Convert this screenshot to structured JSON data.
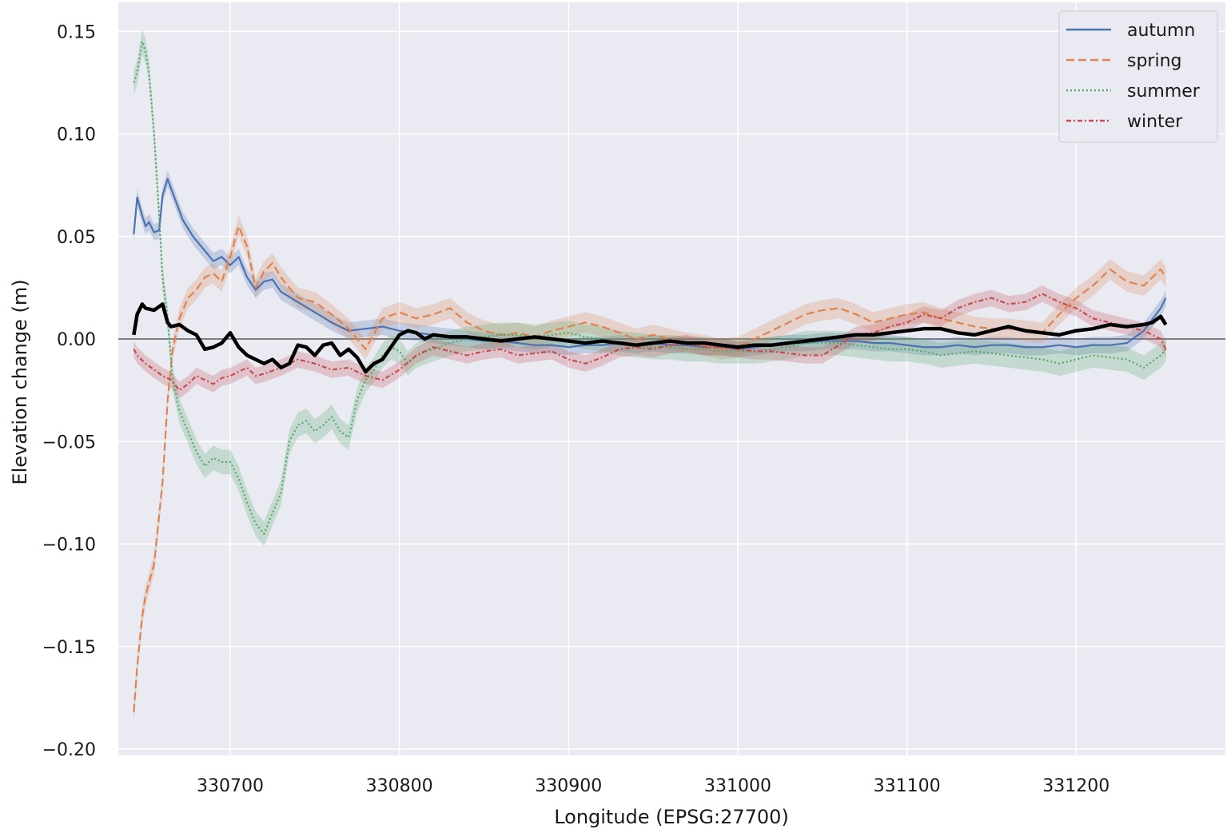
{
  "chart_data": {
    "type": "line",
    "title": "",
    "xlabel": "Longitude (EPSG:27700)",
    "ylabel": "Elevation change (m)",
    "xlim": [
      330635,
      331255
    ],
    "ylim": [
      -0.205,
      0.16
    ],
    "x_ticks": [
      330700,
      330800,
      330900,
      331000,
      331100,
      331200
    ],
    "y_ticks": [
      0.15,
      0.1,
      0.05,
      0.0,
      -0.05,
      -0.1,
      -0.15,
      -0.2
    ],
    "x_tick_labels": [
      "330700",
      "330800",
      "330900",
      "331000",
      "331100",
      "331200"
    ],
    "y_tick_labels": [
      "0.15",
      "0.10",
      "0.05",
      "0.00",
      "−0.05",
      "−0.10",
      "−0.15",
      "−0.20"
    ],
    "grid": true,
    "zero_line": 0.0,
    "legend_position": "top-right",
    "series": [
      {
        "name": "autumn",
        "color": "#4c72b0",
        "style": "solid",
        "band": 0.004,
        "x": [
          330643,
          330645,
          330648,
          330650,
          330652,
          330655,
          330658,
          330660,
          330663,
          330667,
          330672,
          330678,
          330685,
          330690,
          330695,
          330700,
          330705,
          330710,
          330715,
          330720,
          330725,
          330730,
          330740,
          330750,
          330760,
          330770,
          330780,
          330790,
          330800,
          330810,
          330820,
          330830,
          330840,
          330850,
          330860,
          330870,
          330880,
          330890,
          330900,
          330910,
          330920,
          330930,
          330940,
          330950,
          330960,
          330970,
          330980,
          330990,
          331000,
          331010,
          331020,
          331030,
          331040,
          331050,
          331060,
          331070,
          331080,
          331090,
          331100,
          331110,
          331120,
          331130,
          331140,
          331150,
          331160,
          331170,
          331180,
          331190,
          331200,
          331210,
          331220,
          331230,
          331240,
          331250,
          331253
        ],
        "y": [
          0.051,
          0.069,
          0.06,
          0.055,
          0.057,
          0.052,
          0.053,
          0.07,
          0.078,
          0.069,
          0.058,
          0.05,
          0.043,
          0.038,
          0.04,
          0.036,
          0.04,
          0.03,
          0.024,
          0.028,
          0.029,
          0.023,
          0.018,
          0.013,
          0.008,
          0.004,
          0.005,
          0.006,
          0.004,
          0.003,
          0.002,
          0.001,
          0.0,
          -0.001,
          -0.001,
          -0.002,
          -0.003,
          -0.003,
          -0.004,
          -0.003,
          -0.003,
          -0.002,
          -0.003,
          -0.002,
          -0.003,
          -0.003,
          -0.004,
          -0.004,
          -0.005,
          -0.004,
          -0.003,
          -0.002,
          -0.002,
          -0.001,
          -0.001,
          -0.001,
          -0.002,
          -0.002,
          -0.003,
          -0.004,
          -0.004,
          -0.003,
          -0.004,
          -0.003,
          -0.003,
          -0.004,
          -0.004,
          -0.003,
          -0.004,
          -0.003,
          -0.003,
          -0.002,
          0.004,
          0.015,
          0.02
        ]
      },
      {
        "name": "spring",
        "color": "#dd8452",
        "style": "dashed",
        "band": 0.005,
        "x": [
          330643,
          330645,
          330648,
          330650,
          330655,
          330660,
          330663,
          330666,
          330670,
          330675,
          330680,
          330685,
          330690,
          330695,
          330700,
          330705,
          330710,
          330715,
          330720,
          330725,
          330730,
          330740,
          330750,
          330760,
          330770,
          330780,
          330790,
          330800,
          330810,
          330820,
          330830,
          330840,
          330850,
          330860,
          330870,
          330880,
          330890,
          330900,
          330910,
          330920,
          330930,
          330940,
          330950,
          330960,
          330970,
          330980,
          330990,
          331000,
          331010,
          331020,
          331030,
          331040,
          331050,
          331060,
          331070,
          331080,
          331090,
          331100,
          331110,
          331120,
          331130,
          331140,
          331150,
          331160,
          331170,
          331180,
          331190,
          331200,
          331210,
          331220,
          331230,
          331240,
          331250,
          331253
        ],
        "y": [
          -0.182,
          -0.16,
          -0.135,
          -0.125,
          -0.11,
          -0.07,
          -0.03,
          -0.005,
          0.01,
          0.02,
          0.024,
          0.03,
          0.032,
          0.028,
          0.04,
          0.055,
          0.045,
          0.025,
          0.033,
          0.037,
          0.03,
          0.02,
          0.018,
          0.012,
          0.005,
          -0.005,
          0.01,
          0.013,
          0.01,
          0.012,
          0.015,
          0.008,
          0.004,
          0.002,
          0.003,
          0.001,
          0.004,
          0.006,
          0.008,
          0.006,
          0.003,
          0.0,
          0.002,
          0.0,
          -0.002,
          -0.003,
          -0.005,
          -0.004,
          0.0,
          0.004,
          0.008,
          0.012,
          0.014,
          0.015,
          0.012,
          0.008,
          0.01,
          0.012,
          0.013,
          0.01,
          0.008,
          0.006,
          0.005,
          0.005,
          0.004,
          0.003,
          0.012,
          0.02,
          0.026,
          0.034,
          0.028,
          0.026,
          0.034,
          0.03
        ]
      },
      {
        "name": "summer",
        "color": "#55a868",
        "style": "dotted",
        "band": 0.006,
        "x": [
          330643,
          330645,
          330648,
          330650,
          330652,
          330655,
          330658,
          330660,
          330663,
          330666,
          330670,
          330675,
          330680,
          330685,
          330690,
          330695,
          330700,
          330705,
          330710,
          330715,
          330720,
          330725,
          330730,
          330735,
          330740,
          330745,
          330750,
          330755,
          330760,
          330765,
          330770,
          330775,
          330780,
          330785,
          330790,
          330795,
          330800,
          330805,
          330810,
          330820,
          330830,
          330840,
          330850,
          330860,
          330870,
          330880,
          330890,
          330900,
          330910,
          330920,
          330930,
          330940,
          330950,
          330960,
          330970,
          330980,
          330990,
          331000,
          331010,
          331020,
          331030,
          331040,
          331050,
          331060,
          331070,
          331080,
          331090,
          331100,
          331110,
          331120,
          331130,
          331140,
          331150,
          331160,
          331170,
          331180,
          331190,
          331200,
          331210,
          331220,
          331230,
          331240,
          331250,
          331253
        ],
        "y": [
          0.125,
          0.13,
          0.145,
          0.14,
          0.13,
          0.1,
          0.06,
          0.03,
          0.01,
          -0.02,
          -0.035,
          -0.045,
          -0.055,
          -0.062,
          -0.058,
          -0.06,
          -0.06,
          -0.068,
          -0.08,
          -0.09,
          -0.095,
          -0.085,
          -0.075,
          -0.05,
          -0.042,
          -0.04,
          -0.045,
          -0.042,
          -0.038,
          -0.045,
          -0.048,
          -0.03,
          -0.02,
          -0.015,
          -0.008,
          -0.004,
          -0.006,
          -0.012,
          -0.008,
          -0.005,
          -0.002,
          0.0,
          0.001,
          0.002,
          0.002,
          0.001,
          0.002,
          0.003,
          0.001,
          0.0,
          -0.002,
          -0.003,
          -0.004,
          -0.004,
          -0.005,
          -0.005,
          -0.006,
          -0.006,
          -0.006,
          -0.005,
          -0.004,
          -0.002,
          -0.002,
          -0.002,
          -0.003,
          -0.004,
          -0.005,
          -0.005,
          -0.006,
          -0.008,
          -0.007,
          -0.006,
          -0.007,
          -0.008,
          -0.009,
          -0.01,
          -0.012,
          -0.01,
          -0.008,
          -0.009,
          -0.01,
          -0.014,
          -0.008,
          -0.005
        ]
      },
      {
        "name": "winter",
        "color": "#c44e52",
        "style": "dashdot",
        "band": 0.004,
        "x": [
          330643,
          330645,
          330650,
          330655,
          330660,
          330665,
          330670,
          330675,
          330680,
          330685,
          330690,
          330695,
          330700,
          330705,
          330710,
          330715,
          330720,
          330730,
          330740,
          330750,
          330760,
          330770,
          330780,
          330790,
          330800,
          330810,
          330820,
          330830,
          330840,
          330850,
          330860,
          330870,
          330880,
          330890,
          330900,
          330910,
          330920,
          330930,
          330940,
          330950,
          330960,
          330970,
          330980,
          330990,
          331000,
          331010,
          331020,
          331030,
          331040,
          331050,
          331060,
          331070,
          331080,
          331090,
          331100,
          331110,
          331120,
          331130,
          331140,
          331150,
          331160,
          331170,
          331180,
          331190,
          331200,
          331210,
          331220,
          331230,
          331240,
          331250,
          331253
        ],
        "y": [
          -0.005,
          -0.008,
          -0.012,
          -0.015,
          -0.018,
          -0.02,
          -0.025,
          -0.022,
          -0.018,
          -0.02,
          -0.022,
          -0.019,
          -0.018,
          -0.016,
          -0.014,
          -0.018,
          -0.017,
          -0.014,
          -0.01,
          -0.012,
          -0.015,
          -0.014,
          -0.018,
          -0.02,
          -0.015,
          -0.008,
          -0.004,
          -0.006,
          -0.008,
          -0.006,
          -0.005,
          -0.008,
          -0.007,
          -0.006,
          -0.01,
          -0.012,
          -0.009,
          -0.005,
          -0.004,
          -0.005,
          -0.003,
          -0.002,
          -0.004,
          -0.004,
          -0.005,
          -0.006,
          -0.006,
          -0.007,
          -0.008,
          -0.008,
          -0.003,
          0.002,
          0.003,
          0.006,
          0.008,
          0.012,
          0.01,
          0.015,
          0.018,
          0.02,
          0.017,
          0.018,
          0.022,
          0.018,
          0.015,
          0.01,
          0.008,
          0.006,
          0.004,
          0.0,
          -0.005
        ]
      },
      {
        "name": "",
        "color": "#000000",
        "style": "solid-thick",
        "band": 0,
        "x": [
          330643,
          330645,
          330648,
          330650,
          330655,
          330660,
          330663,
          330665,
          330670,
          330675,
          330680,
          330685,
          330690,
          330695,
          330700,
          330705,
          330710,
          330715,
          330720,
          330725,
          330730,
          330735,
          330740,
          330745,
          330750,
          330755,
          330760,
          330765,
          330770,
          330775,
          330780,
          330785,
          330790,
          330795,
          330800,
          330805,
          330810,
          330815,
          330820,
          330830,
          330840,
          330850,
          330860,
          330870,
          330880,
          330890,
          330900,
          330910,
          330920,
          330930,
          330940,
          330950,
          330960,
          330970,
          330980,
          330990,
          331000,
          331010,
          331020,
          331030,
          331040,
          331050,
          331060,
          331070,
          331080,
          331090,
          331100,
          331110,
          331120,
          331130,
          331140,
          331150,
          331160,
          331170,
          331180,
          331190,
          331200,
          331210,
          331220,
          331230,
          331240,
          331245,
          331250,
          331253
        ],
        "y": [
          0.002,
          0.012,
          0.017,
          0.015,
          0.014,
          0.017,
          0.008,
          0.006,
          0.007,
          0.004,
          0.002,
          -0.005,
          -0.004,
          -0.002,
          0.003,
          -0.004,
          -0.008,
          -0.01,
          -0.012,
          -0.01,
          -0.014,
          -0.012,
          -0.003,
          -0.004,
          -0.008,
          -0.003,
          -0.002,
          -0.008,
          -0.005,
          -0.009,
          -0.016,
          -0.012,
          -0.01,
          -0.004,
          0.002,
          0.004,
          0.003,
          0.0,
          0.002,
          0.001,
          0.001,
          0.0,
          -0.001,
          0.0,
          0.001,
          0.0,
          -0.001,
          -0.002,
          -0.001,
          -0.002,
          -0.003,
          -0.002,
          -0.001,
          -0.002,
          -0.002,
          -0.003,
          -0.004,
          -0.003,
          -0.003,
          -0.002,
          -0.001,
          0.0,
          0.001,
          0.002,
          0.002,
          0.003,
          0.004,
          0.005,
          0.005,
          0.003,
          0.002,
          0.004,
          0.006,
          0.004,
          0.003,
          0.002,
          0.004,
          0.005,
          0.007,
          0.006,
          0.007,
          0.008,
          0.011,
          0.007
        ]
      }
    ]
  }
}
